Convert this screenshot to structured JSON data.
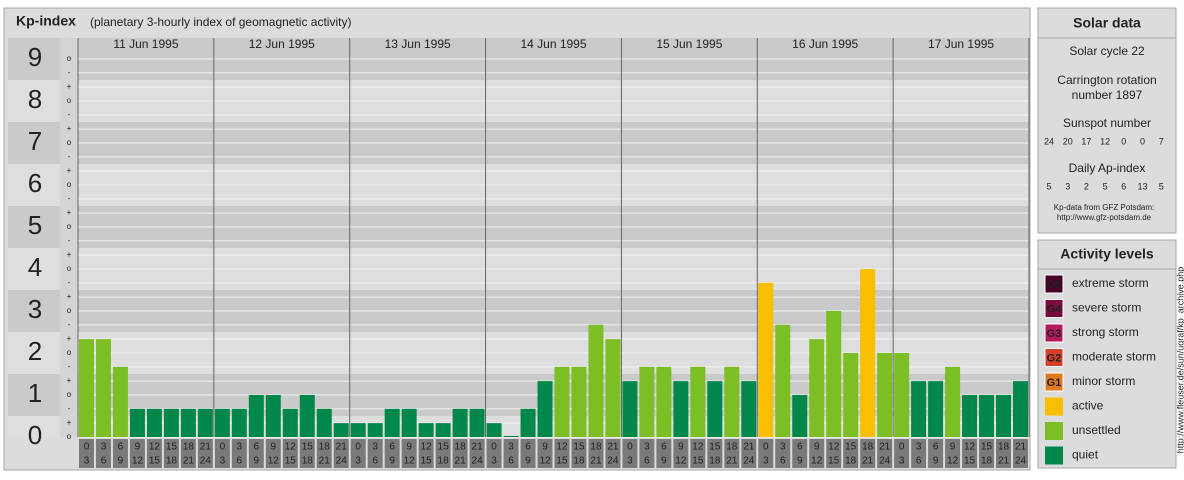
{
  "chart_data": {
    "type": "bar",
    "title": "Kp-index",
    "subtitle": "(planetary 3-hourly index of geomagnetic activity)",
    "categories": [
      "11 Jun 1995",
      "12 Jun 1995",
      "13 Jun 1995",
      "14 Jun 1995",
      "15 Jun 1995",
      "16 Jun 1995",
      "17 Jun 1995"
    ],
    "intervals": [
      [
        "0",
        "3"
      ],
      [
        "3",
        "6"
      ],
      [
        "6",
        "9"
      ],
      [
        "9",
        "12"
      ],
      [
        "12",
        "15"
      ],
      [
        "15",
        "18"
      ],
      [
        "18",
        "21"
      ],
      [
        "21",
        "24"
      ]
    ],
    "values": [
      [
        2.33,
        2.33,
        1.67,
        0.67,
        0.67,
        0.67,
        0.67,
        0.67
      ],
      [
        0.67,
        0.67,
        1,
        1,
        0.67,
        1,
        0.67,
        0.33
      ],
      [
        0.33,
        0.33,
        0.67,
        0.67,
        0.33,
        0.33,
        0.67,
        0.67
      ],
      [
        0.33,
        0,
        0.67,
        1.33,
        1.67,
        1.67,
        2.67,
        2.33
      ],
      [
        1.33,
        1.67,
        1.67,
        1.33,
        1.67,
        1.33,
        1.67,
        1.33
      ],
      [
        3.67,
        2.67,
        1,
        2.33,
        3,
        2,
        4,
        2
      ],
      [
        2,
        1.33,
        1.33,
        1.67,
        1,
        1,
        1,
        1.33
      ]
    ],
    "colors": [
      [
        "#7bbf24",
        "#7bbf24",
        "#7bbf24",
        "#00874a",
        "#00874a",
        "#00874a",
        "#00874a",
        "#00874a"
      ],
      [
        "#00874a",
        "#00874a",
        "#00874a",
        "#00874a",
        "#00874a",
        "#00874a",
        "#00874a",
        "#00874a"
      ],
      [
        "#00874a",
        "#00874a",
        "#00874a",
        "#00874a",
        "#00874a",
        "#00874a",
        "#00874a",
        "#00874a"
      ],
      [
        "#00874a",
        "#00874a",
        "#00874a",
        "#00874a",
        "#7bbf24",
        "#7bbf24",
        "#7bbf24",
        "#7bbf24"
      ],
      [
        "#00874a",
        "#7bbf24",
        "#7bbf24",
        "#00874a",
        "#7bbf24",
        "#00874a",
        "#7bbf24",
        "#00874a"
      ],
      [
        "#f7bf00",
        "#7bbf24",
        "#00874a",
        "#7bbf24",
        "#7bbf24",
        "#7bbf24",
        "#f7bf00",
        "#7bbf24"
      ],
      [
        "#7bbf24",
        "#00874a",
        "#00874a",
        "#7bbf24",
        "#00874a",
        "#00874a",
        "#00874a",
        "#00874a"
      ]
    ],
    "ylim": [
      0,
      9.5
    ],
    "yticks": [
      0,
      1,
      2,
      3,
      4,
      5,
      6,
      7,
      8,
      9
    ],
    "minor_yticks": [
      {
        "value": 0,
        "label": "o"
      },
      {
        "value": 0.33,
        "label": "+"
      },
      {
        "value": 0.67,
        "label": "-"
      },
      {
        "value": 1,
        "label": "o"
      },
      {
        "value": 1.33,
        "label": "+"
      },
      {
        "value": 1.67,
        "label": "-"
      },
      {
        "value": 2,
        "label": "o"
      },
      {
        "value": 2.33,
        "label": "+"
      },
      {
        "value": 2.67,
        "label": "-"
      },
      {
        "value": 3,
        "label": "o"
      },
      {
        "value": 3.33,
        "label": "+"
      },
      {
        "value": 3.67,
        "label": "-"
      },
      {
        "value": 4,
        "label": "o"
      },
      {
        "value": 4.33,
        "label": "+"
      },
      {
        "value": 4.67,
        "label": "-"
      },
      {
        "value": 5,
        "label": "o"
      },
      {
        "value": 5.33,
        "label": "+"
      },
      {
        "value": 5.67,
        "label": "-"
      },
      {
        "value": 6,
        "label": "o"
      },
      {
        "value": 6.33,
        "label": "+"
      },
      {
        "value": 6.67,
        "label": "-"
      },
      {
        "value": 7,
        "label": "o"
      },
      {
        "value": 7.33,
        "label": "+"
      },
      {
        "value": 7.67,
        "label": "-"
      },
      {
        "value": 8,
        "label": "o"
      },
      {
        "value": 8.33,
        "label": "+"
      },
      {
        "value": 8.67,
        "label": "-"
      },
      {
        "value": 9,
        "label": "o"
      }
    ],
    "grid": true
  },
  "solar_data": {
    "title": "Solar data",
    "cycle": "Solar cycle 22",
    "carrington": [
      "Carrington rotation",
      "number 1897"
    ],
    "sunspot_title": "Sunspot number",
    "sunspot": [
      24,
      20,
      17,
      12,
      0,
      0,
      7
    ],
    "ap_title": "Daily Ap-index",
    "ap": [
      5,
      3,
      2,
      5,
      6,
      13,
      5
    ],
    "source": [
      "Kp-data from GFZ Potsdam:",
      "http://www.gfz-potsdam.de"
    ]
  },
  "activity_levels": {
    "title": "Activity levels",
    "items": [
      {
        "badge": "G5",
        "label": "extreme storm",
        "color": "#4a0025"
      },
      {
        "badge": "G4",
        "label": "severe storm",
        "color": "#7a0a3c"
      },
      {
        "badge": "G3",
        "label": "strong storm",
        "color": "#b3195b"
      },
      {
        "badge": "G2",
        "label": "moderate storm",
        "color": "#d6402a"
      },
      {
        "badge": "G1",
        "label": "minor storm",
        "color": "#e0781f"
      },
      {
        "label": "active",
        "color": "#f7bf00"
      },
      {
        "label": "unsettled",
        "color": "#7bbf24"
      },
      {
        "label": "quiet",
        "color": "#00874a"
      }
    ]
  },
  "watermark": "http://www.fleuser.de/sun/ugraf/kp_archive.php"
}
